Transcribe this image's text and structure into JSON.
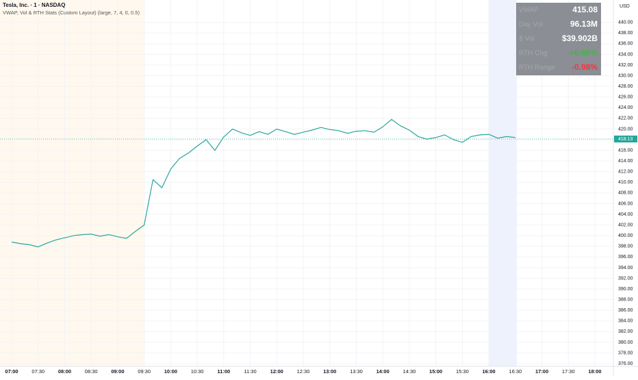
{
  "header": {
    "symbol": "Tesla, Inc. · 1 · NASDAQ",
    "indicator": "VWAP, Vol & RTH Stats (Custom Layout) (large, 7, 4, 0, 0.5)",
    "currency": "USD"
  },
  "stats": {
    "rows": [
      [
        "VWAP",
        "415.08"
      ],
      [
        "Day Vol",
        "96.13M"
      ],
      [
        "$ Vol",
        "$39.902B"
      ],
      [
        "RTH Chg",
        "+0.66%"
      ],
      [
        "RTH Range",
        "-0.98%"
      ]
    ]
  },
  "chart_data": {
    "type": "line",
    "x": [
      "07:00",
      "07:10",
      "07:20",
      "07:30",
      "07:40",
      "07:50",
      "08:00",
      "08:10",
      "08:20",
      "08:30",
      "08:40",
      "08:50",
      "09:00",
      "09:10",
      "09:20",
      "09:30",
      "09:40",
      "09:50",
      "10:00",
      "10:10",
      "10:20",
      "10:30",
      "10:40",
      "10:50",
      "11:00",
      "11:10",
      "11:20",
      "11:30",
      "11:40",
      "11:50",
      "12:00",
      "12:10",
      "12:20",
      "12:30",
      "12:40",
      "12:50",
      "13:00",
      "13:10",
      "13:20",
      "13:30",
      "13:40",
      "13:50",
      "14:00",
      "14:10",
      "14:20",
      "14:30",
      "14:40",
      "14:50",
      "15:00",
      "15:10",
      "15:20",
      "15:30",
      "15:40",
      "15:50",
      "16:00",
      "16:10",
      "16:20",
      "16:30"
    ],
    "series": [
      {
        "name": "TSLA",
        "color": "#26a69a",
        "values": [
          398.8,
          398.5,
          398.3,
          397.9,
          398.6,
          399.2,
          399.6,
          400.0,
          400.2,
          400.3,
          399.9,
          400.2,
          399.8,
          399.5,
          400.8,
          402.0,
          410.5,
          409.0,
          412.5,
          414.5,
          415.5,
          416.8,
          418.0,
          416.0,
          418.5,
          420.0,
          419.3,
          418.8,
          419.5,
          419.0,
          420.0,
          419.5,
          419.0,
          419.4,
          419.8,
          420.3,
          419.9,
          419.7,
          419.2,
          419.6,
          419.7,
          419.4,
          420.4,
          421.8,
          420.6,
          419.8,
          418.6,
          418.1,
          418.4,
          418.9,
          418.0,
          417.5,
          418.6,
          418.9,
          419.0,
          418.3,
          418.6,
          418.4
        ]
      }
    ],
    "last_price": {
      "value": 418.13,
      "label": "418.13"
    },
    "ylim": [
      374.6,
      444.2
    ],
    "yticks": [
      {
        "value": 376,
        "label": "376.00"
      },
      {
        "value": 378,
        "label": "378.00"
      },
      {
        "value": 380,
        "label": "380.00"
      },
      {
        "value": 382,
        "label": "382.00"
      },
      {
        "value": 384,
        "label": "384.00"
      },
      {
        "value": 386,
        "label": "386.00"
      },
      {
        "value": 388,
        "label": "388.00"
      },
      {
        "value": 390,
        "label": "390.00"
      },
      {
        "value": 392,
        "label": "392.00"
      },
      {
        "value": 394,
        "label": "394.00"
      },
      {
        "value": 396,
        "label": "396.00"
      },
      {
        "value": 398,
        "label": "398.00"
      },
      {
        "value": 400,
        "label": "400.00"
      },
      {
        "value": 402,
        "label": "402.00"
      },
      {
        "value": 404,
        "label": "404.00"
      },
      {
        "value": 406,
        "label": "406.00"
      },
      {
        "value": 408,
        "label": "408.00"
      },
      {
        "value": 410,
        "label": "410.00"
      },
      {
        "value": 412,
        "label": "412.00"
      },
      {
        "value": 414,
        "label": "414.00"
      },
      {
        "value": 416,
        "label": "416.00"
      },
      {
        "value": 418,
        "label": "418.00"
      },
      {
        "value": 420,
        "label": "420.00"
      },
      {
        "value": 422,
        "label": "422.00"
      },
      {
        "value": 424,
        "label": "424.00"
      },
      {
        "value": 426,
        "label": "426.00"
      },
      {
        "value": 428,
        "label": "428.00"
      },
      {
        "value": 430,
        "label": "430.00"
      },
      {
        "value": 432,
        "label": "432.00"
      },
      {
        "value": 434,
        "label": "434.00"
      },
      {
        "value": 436,
        "label": "436.00"
      },
      {
        "value": 438,
        "label": "438.00"
      },
      {
        "value": 440,
        "label": "440.00"
      }
    ],
    "xticks": [
      "07:00",
      "07:30",
      "08:00",
      "08:30",
      "09:00",
      "09:30",
      "10:00",
      "10:30",
      "11:00",
      "11:30",
      "12:00",
      "12:30",
      "13:00",
      "13:30",
      "14:00",
      "14:30",
      "15:00",
      "15:30",
      "16:00",
      "16:30",
      "17:00",
      "17:30",
      "18:00"
    ],
    "grid": true
  }
}
